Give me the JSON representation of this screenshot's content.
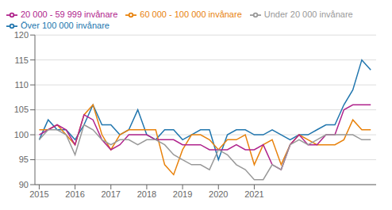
{
  "chart_data": {
    "type": "line",
    "x": [
      2015,
      2015.25,
      2015.5,
      2015.75,
      2016,
      2016.25,
      2016.5,
      2016.75,
      2017,
      2017.25,
      2017.5,
      2017.75,
      2018,
      2018.25,
      2018.5,
      2018.75,
      2019,
      2019.25,
      2019.5,
      2019.75,
      2020,
      2020.25,
      2020.5,
      2020.75,
      2021,
      2021.25,
      2021.5,
      2021.75,
      2022,
      2022.25,
      2022.5,
      2022.75,
      2023,
      2023.25,
      2023.5,
      2023.75,
      2024,
      2024.25
    ],
    "series": [
      {
        "name": "Över 100 000 invånare",
        "color": "#2176ae",
        "values": [
          99,
          103,
          101,
          101,
          99,
          102,
          106,
          102,
          102,
          100,
          101,
          105,
          100,
          99,
          101,
          101,
          99,
          100,
          101,
          101,
          95,
          100,
          101,
          101,
          100,
          100,
          101,
          100,
          99,
          100,
          100,
          101,
          102,
          102,
          106,
          109,
          115,
          113
        ]
      },
      {
        "name": "60 000 - 100 000 invånare",
        "color": "#e8820c",
        "values": [
          101,
          101,
          102,
          100,
          98,
          104,
          106,
          100,
          97,
          100,
          101,
          101,
          101,
          101,
          94,
          92,
          97,
          100,
          100,
          99,
          97,
          99,
          99,
          100,
          94,
          98,
          99,
          94,
          98,
          100,
          99,
          98,
          98,
          98,
          99,
          103,
          101,
          101
        ]
      },
      {
        "name": "20 000 - 59 999 invånare",
        "color": "#b0238c",
        "values": [
          100,
          101,
          102,
          101,
          98,
          104,
          103,
          99,
          97,
          98,
          100,
          100,
          100,
          99,
          99,
          99,
          98,
          98,
          98,
          97,
          97,
          97,
          98,
          97,
          97,
          98,
          94,
          93,
          98,
          100,
          98,
          98,
          100,
          100,
          105,
          106,
          106,
          106
        ]
      },
      {
        "name": "Under 20 000 invånare",
        "color": "#999999",
        "values": [
          99,
          101,
          101,
          100,
          96,
          102,
          101,
          99,
          98,
          99,
          99,
          98,
          99,
          99,
          98,
          96,
          95,
          94,
          94,
          93,
          97,
          96,
          94,
          93,
          91,
          91,
          94,
          93,
          98,
          99,
          98,
          99,
          100,
          100,
          100,
          100,
          99,
          99
        ]
      }
    ],
    "xlim": [
      2014.88,
      2024.4
    ],
    "xticks": [
      2015,
      2016,
      2017,
      2018,
      2019,
      2020,
      2021
    ],
    "ylim": [
      90,
      120
    ],
    "yticks": [
      90,
      95,
      100,
      105,
      110,
      115,
      120
    ],
    "grid": true,
    "legend": "upper left"
  }
}
